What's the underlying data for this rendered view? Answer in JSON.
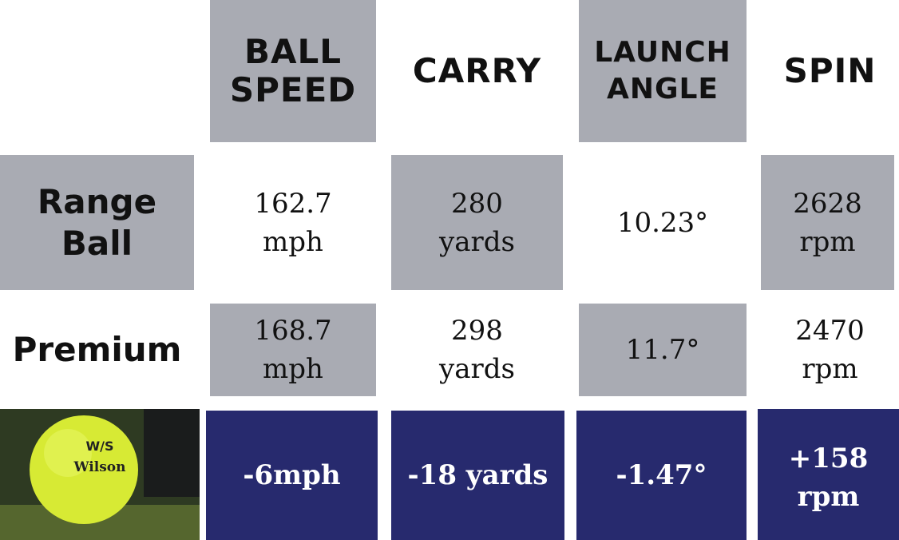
{
  "header": {
    "columns": [
      [
        "BALL",
        "SPEED"
      ],
      [
        "CARRY"
      ],
      [
        "LAUNCH",
        "ANGLE"
      ],
      [
        "SPIN"
      ]
    ]
  },
  "table": {
    "rows": [
      {
        "label": [
          "Range",
          "Ball"
        ],
        "cells": [
          [
            "162.7",
            "mph"
          ],
          [
            "280",
            "yards"
          ],
          [
            "10.23°"
          ],
          [
            "2628",
            "rpm"
          ]
        ]
      },
      {
        "label": [
          "Premium"
        ],
        "cells": [
          [
            "168.7",
            "mph"
          ],
          [
            "298",
            "yards"
          ],
          [
            "11.7°"
          ],
          [
            "2470",
            "rpm"
          ]
        ]
      }
    ],
    "difference": [
      [
        "-6mph"
      ],
      [
        "-18 yards"
      ],
      [
        "-1.47°"
      ],
      [
        "+158",
        "rpm"
      ]
    ]
  },
  "ball_image": {
    "logo": "W/S",
    "brand": "Wilson"
  }
}
